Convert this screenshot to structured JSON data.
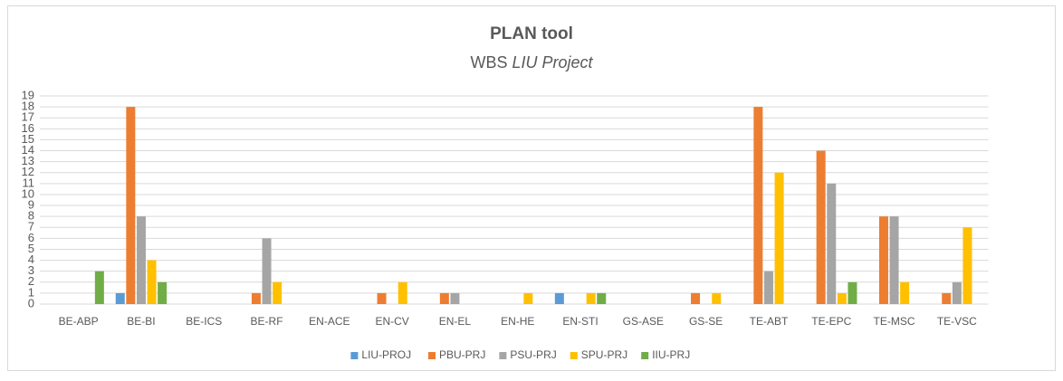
{
  "chart_data": {
    "type": "bar",
    "title": "PLAN tool",
    "subtitle_parts": [
      "WBS",
      "LIU Project"
    ],
    "categories": [
      "BE-ABP",
      "BE-BI",
      "BE-ICS",
      "BE-RF",
      "EN-ACE",
      "EN-CV",
      "EN-EL",
      "EN-HE",
      "EN-STI",
      "GS-ASE",
      "GS-SE",
      "TE-ABT",
      "TE-EPC",
      "TE-MSC",
      "TE-VSC"
    ],
    "series": [
      {
        "name": "LIU-PROJ",
        "color": "#5b9bd5",
        "values": [
          0,
          1,
          0,
          0,
          0,
          0,
          0,
          0,
          1,
          0,
          0,
          0,
          0,
          0,
          0
        ]
      },
      {
        "name": "PBU-PRJ",
        "color": "#ed7d31",
        "values": [
          0,
          18,
          0,
          1,
          0,
          1,
          1,
          0,
          0,
          0,
          1,
          18,
          14,
          8,
          1
        ]
      },
      {
        "name": "PSU-PRJ",
        "color": "#a5a5a5",
        "values": [
          0,
          8,
          0,
          6,
          0,
          0,
          1,
          0,
          0,
          0,
          0,
          3,
          11,
          8,
          2
        ]
      },
      {
        "name": "SPU-PRJ",
        "color": "#ffc000",
        "values": [
          0,
          4,
          0,
          2,
          0,
          2,
          0,
          1,
          1,
          0,
          1,
          12,
          1,
          2,
          7
        ]
      },
      {
        "name": "IIU-PRJ",
        "color": "#70ad47",
        "values": [
          3,
          2,
          0,
          0,
          0,
          0,
          0,
          0,
          1,
          0,
          0,
          0,
          2,
          0,
          0
        ]
      }
    ],
    "ylim": [
      0,
      19
    ],
    "yticks": [
      0,
      1,
      2,
      3,
      4,
      5,
      6,
      7,
      8,
      9,
      10,
      11,
      12,
      13,
      14,
      15,
      16,
      17,
      18,
      19
    ],
    "grid": true,
    "legend": "bottom"
  }
}
